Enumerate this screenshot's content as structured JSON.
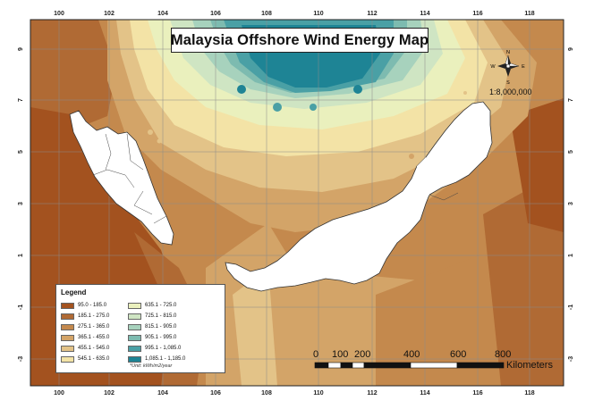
{
  "map": {
    "title": "Malaysia Offshore Wind Energy Map",
    "scale_ratio": "1:8,000,000",
    "longitude_ticks": [
      "100",
      "102",
      "104",
      "106",
      "108",
      "110",
      "112",
      "114",
      "116",
      "118"
    ],
    "latitude_ticks": [
      "9",
      "7",
      "5",
      "3",
      "1",
      "-1",
      "-3"
    ],
    "compass": {
      "n": "N",
      "s": "S",
      "e": "E",
      "w": "W"
    },
    "legend": {
      "title": "Legend",
      "unit_note": "*Unit: kWh/m2/year",
      "items": [
        {
          "label": "95.0 - 185.0",
          "color": "#a3521f"
        },
        {
          "label": "185.1 - 275.0",
          "color": "#b06a34"
        },
        {
          "label": "275.1 - 365.0",
          "color": "#c4894d"
        },
        {
          "label": "365.1 - 455.0",
          "color": "#d3a468"
        },
        {
          "label": "455.1 - 545.0",
          "color": "#e3c388"
        },
        {
          "label": "545.1 - 635.0",
          "color": "#f3e3a6"
        },
        {
          "label": "635.1 - 725.0",
          "color": "#eaf0bd"
        },
        {
          "label": "725.1 - 815.0",
          "color": "#cfe5c3"
        },
        {
          "label": "815.1 - 905.0",
          "color": "#a7d2bd"
        },
        {
          "label": "905.1 - 995.0",
          "color": "#7dbbb0"
        },
        {
          "label": "995.1 - 1,085.0",
          "color": "#4aa0a5"
        },
        {
          "label": "1,085.1 - 1,185.0",
          "color": "#1e8495"
        }
      ]
    },
    "scale_bar": {
      "labels": [
        "0",
        "100",
        "200",
        "400",
        "600",
        "800"
      ],
      "unit": "Kilometers"
    },
    "colors": {
      "land": "#ffffff",
      "frame": "#222222"
    }
  }
}
